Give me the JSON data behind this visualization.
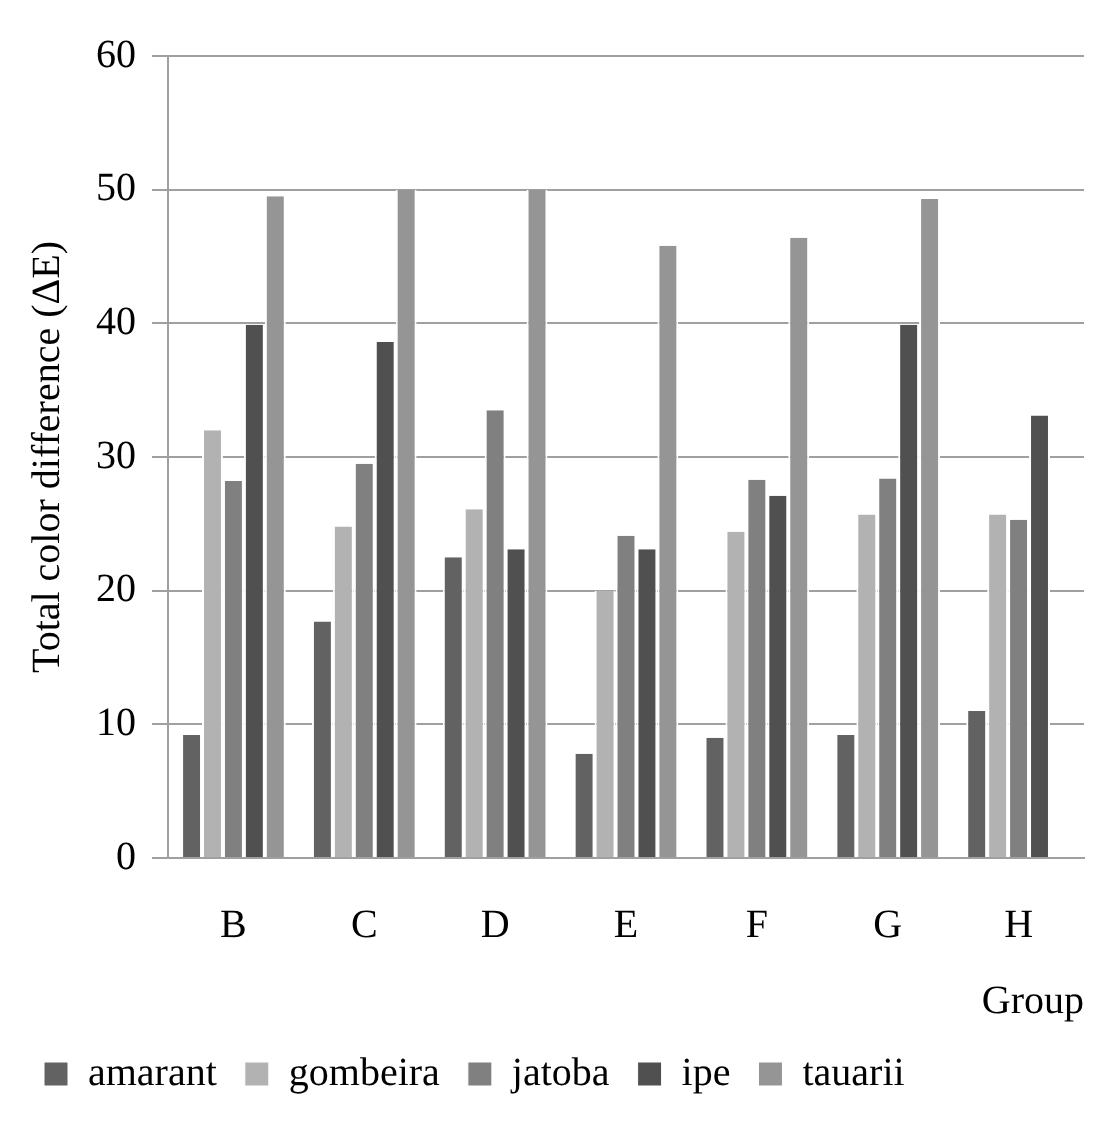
{
  "chart_data": {
    "type": "bar",
    "ylabel": "Total color difference (ΔE)",
    "xlabel": "Group",
    "categories": [
      "B",
      "C",
      "D",
      "E",
      "F",
      "G",
      "H"
    ],
    "series": [
      {
        "name": "amarant",
        "color": "#626262",
        "values": [
          9.2,
          17.7,
          22.5,
          7.8,
          9.0,
          9.2,
          11.0
        ]
      },
      {
        "name": "gombeira",
        "color": "#b2b2b2",
        "values": [
          32.0,
          24.8,
          26.1,
          20.0,
          24.4,
          25.7,
          25.7
        ]
      },
      {
        "name": "jatoba",
        "color": "#808080",
        "values": [
          28.2,
          29.5,
          33.5,
          24.1,
          28.3,
          28.4,
          25.3
        ]
      },
      {
        "name": "ipe",
        "color": "#505050",
        "values": [
          39.9,
          38.6,
          23.1,
          23.1,
          27.1,
          39.9,
          33.1
        ]
      },
      {
        "name": "tauarii",
        "color": "#959595",
        "values": [
          49.5,
          50,
          50,
          45.8,
          46.4,
          49.3,
          null
        ]
      }
    ],
    "ylim": [
      0,
      60
    ],
    "yticks": [
      0,
      10,
      20,
      30,
      40,
      50,
      60
    ],
    "grid": "y",
    "legend": "bottom"
  }
}
